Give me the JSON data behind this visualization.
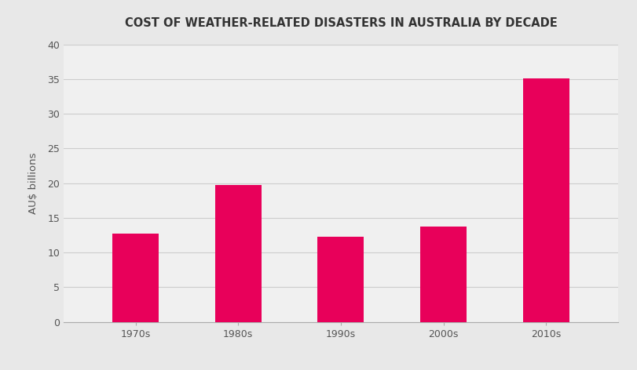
{
  "title": "COST OF WEATHER-RELATED DISASTERS IN AUSTRALIA BY DECADE",
  "categories": [
    "1970s",
    "1980s",
    "1990s",
    "2000s",
    "2010s"
  ],
  "values": [
    12.7,
    19.7,
    12.3,
    13.7,
    35.1
  ],
  "bar_color": "#E8005A",
  "ylabel": "AU$ billions",
  "ylim": [
    0,
    40
  ],
  "yticks": [
    0,
    5,
    10,
    15,
    20,
    25,
    30,
    35,
    40
  ],
  "outer_background": "#E8E8E8",
  "plot_background": "#F0F0F0",
  "grid_color": "#CCCCCC",
  "title_fontsize": 10.5,
  "ylabel_fontsize": 9.5,
  "tick_fontsize": 9,
  "bar_width": 0.45,
  "title_color": "#333333",
  "tick_color": "#555555"
}
